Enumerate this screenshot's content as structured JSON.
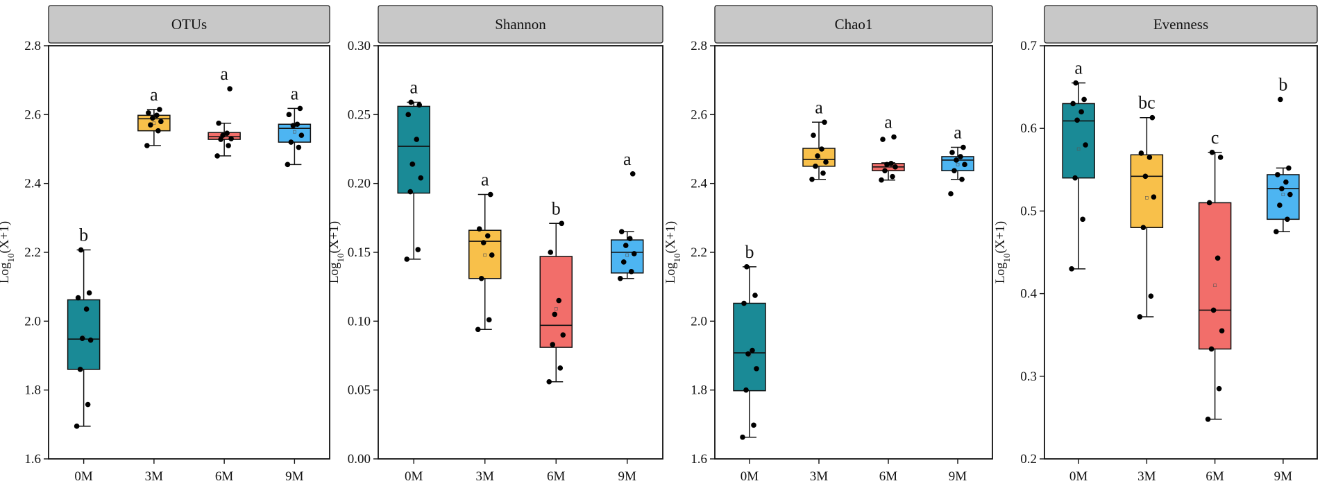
{
  "chart_data": [
    {
      "type": "box",
      "title": "OTUs",
      "ylabel": "Log10(X+1)",
      "ylabel_main": "Log",
      "ylabel_sub": "10",
      "ylabel_tail": "(X+1)",
      "ylim": [
        1.6,
        2.8
      ],
      "yticks": [
        "1.6",
        "1.8",
        "2.0",
        "2.2",
        "2.4",
        "2.6",
        "2.8"
      ],
      "yticks_val": [
        1.6,
        1.8,
        2.0,
        2.2,
        2.4,
        2.6,
        2.8
      ],
      "categories": [
        "0M",
        "3M",
        "6M",
        "9M"
      ],
      "colors": [
        "#1a8a96",
        "#f8c04a",
        "#f26e6a",
        "#4db5f2"
      ],
      "boxes": [
        {
          "min": 1.695,
          "q1": 1.86,
          "median": 1.948,
          "q3": 2.062,
          "max": 2.207,
          "mean": 1.955,
          "letter": "b",
          "points": [
            1.695,
            1.758,
            1.86,
            1.945,
            1.95,
            2.035,
            2.068,
            2.082,
            2.207
          ]
        },
        {
          "min": 2.51,
          "q1": 2.553,
          "median": 2.588,
          "q3": 2.598,
          "max": 2.615,
          "mean": 2.575,
          "letter": "a",
          "points": [
            2.51,
            2.553,
            2.57,
            2.58,
            2.59,
            2.598,
            2.605,
            2.615
          ]
        },
        {
          "min": 2.48,
          "q1": 2.528,
          "median": 2.536,
          "q3": 2.548,
          "max": 2.575,
          "mean": 2.54,
          "letter": "a",
          "points": [
            2.48,
            2.51,
            2.528,
            2.53,
            2.54,
            2.546,
            2.575,
            2.675
          ]
        },
        {
          "min": 2.455,
          "q1": 2.52,
          "median": 2.56,
          "q3": 2.572,
          "max": 2.618,
          "mean": 2.55,
          "letter": "a",
          "points": [
            2.455,
            2.505,
            2.52,
            2.54,
            2.568,
            2.572,
            2.6,
            2.618
          ]
        }
      ]
    },
    {
      "type": "box",
      "title": "Shannon",
      "ylabel": "Log10(X+1)",
      "ylabel_main": "Log",
      "ylabel_sub": "10",
      "ylabel_tail": "(X+1)",
      "ylim": [
        0.0,
        0.3
      ],
      "yticks": [
        "0.00",
        "0.05",
        "0.10",
        "0.15",
        "0.20",
        "0.25",
        "0.30"
      ],
      "yticks_val": [
        0.0,
        0.05,
        0.1,
        0.15,
        0.2,
        0.25,
        0.3
      ],
      "categories": [
        "0M",
        "3M",
        "6M",
        "9M"
      ],
      "colors": [
        "#1a8a96",
        "#f8c04a",
        "#f26e6a",
        "#4db5f2"
      ],
      "boxes": [
        {
          "min": 0.145,
          "q1": 0.193,
          "median": 0.227,
          "q3": 0.256,
          "max": 0.259,
          "mean": 0.214,
          "letter": "a",
          "points": [
            0.145,
            0.152,
            0.194,
            0.204,
            0.214,
            0.232,
            0.25,
            0.257,
            0.259
          ]
        },
        {
          "min": 0.094,
          "q1": 0.131,
          "median": 0.158,
          "q3": 0.166,
          "max": 0.192,
          "mean": 0.148,
          "letter": "a",
          "points": [
            0.094,
            0.101,
            0.131,
            0.148,
            0.157,
            0.162,
            0.167,
            0.192
          ]
        },
        {
          "min": 0.056,
          "q1": 0.081,
          "median": 0.097,
          "q3": 0.147,
          "max": 0.171,
          "mean": 0.109,
          "letter": "b",
          "points": [
            0.056,
            0.066,
            0.083,
            0.09,
            0.105,
            0.115,
            0.15,
            0.171
          ]
        },
        {
          "min": 0.131,
          "q1": 0.135,
          "median": 0.15,
          "q3": 0.159,
          "max": 0.165,
          "mean": 0.148,
          "letter": "a",
          "points": [
            0.131,
            0.136,
            0.143,
            0.149,
            0.155,
            0.16,
            0.165,
            0.207
          ]
        }
      ]
    },
    {
      "type": "box",
      "title": "Chao1",
      "ylabel": "Log10(X+1)",
      "ylabel_main": "Log",
      "ylabel_sub": "10",
      "ylabel_tail": "(X+1)",
      "ylim": [
        1.6,
        2.8
      ],
      "yticks": [
        "1.6",
        "1.8",
        "2.0",
        "2.2",
        "2.4",
        "2.6",
        "2.8"
      ],
      "yticks_val": [
        1.6,
        1.8,
        2.0,
        2.2,
        2.4,
        2.6,
        2.8
      ],
      "categories": [
        "0M",
        "3M",
        "6M",
        "9M"
      ],
      "colors": [
        "#1a8a96",
        "#f8c04a",
        "#f26e6a",
        "#4db5f2"
      ],
      "boxes": [
        {
          "min": 1.663,
          "q1": 1.798,
          "median": 1.908,
          "q3": 2.052,
          "max": 2.158,
          "mean": 1.9,
          "letter": "b",
          "points": [
            1.663,
            1.698,
            1.8,
            1.862,
            1.905,
            1.915,
            2.052,
            2.075,
            2.158
          ]
        },
        {
          "min": 2.412,
          "q1": 2.45,
          "median": 2.47,
          "q3": 2.502,
          "max": 2.578,
          "mean": 2.473,
          "letter": "a",
          "points": [
            2.412,
            2.43,
            2.45,
            2.462,
            2.48,
            2.5,
            2.54,
            2.578
          ]
        },
        {
          "min": 2.41,
          "q1": 2.437,
          "median": 2.448,
          "q3": 2.458,
          "max": 2.46,
          "mean": 2.452,
          "letter": "a",
          "points": [
            2.41,
            2.42,
            2.437,
            2.448,
            2.455,
            2.458,
            2.528,
            2.535
          ]
        },
        {
          "min": 2.412,
          "q1": 2.437,
          "median": 2.468,
          "q3": 2.478,
          "max": 2.505,
          "mean": 2.455,
          "letter": "a",
          "points": [
            2.37,
            2.412,
            2.437,
            2.455,
            2.468,
            2.478,
            2.49,
            2.505
          ]
        }
      ]
    },
    {
      "type": "box",
      "title": "Evenness",
      "ylabel": "Log10(X+1)",
      "ylabel_main": "Log",
      "ylabel_sub": "10",
      "ylabel_tail": "(X+1)",
      "ylim": [
        0.2,
        0.7
      ],
      "yticks": [
        "0.2",
        "0.3",
        "0.4",
        "0.5",
        "0.6",
        "0.7"
      ],
      "yticks_val": [
        0.2,
        0.3,
        0.4,
        0.5,
        0.6,
        0.7
      ],
      "categories": [
        "0M",
        "3M",
        "6M",
        "9M"
      ],
      "colors": [
        "#1a8a96",
        "#f8c04a",
        "#f26e6a",
        "#4db5f2"
      ],
      "boxes": [
        {
          "min": 0.43,
          "q1": 0.54,
          "median": 0.609,
          "q3": 0.63,
          "max": 0.655,
          "mean": 0.575,
          "letter": "a",
          "points": [
            0.43,
            0.49,
            0.54,
            0.58,
            0.61,
            0.62,
            0.63,
            0.635,
            0.655
          ]
        },
        {
          "min": 0.372,
          "q1": 0.48,
          "median": 0.542,
          "q3": 0.568,
          "max": 0.613,
          "mean": 0.516,
          "letter": "bc",
          "points": [
            0.372,
            0.397,
            0.48,
            0.517,
            0.542,
            0.565,
            0.57,
            0.613
          ]
        },
        {
          "min": 0.248,
          "q1": 0.333,
          "median": 0.38,
          "q3": 0.51,
          "max": 0.571,
          "mean": 0.41,
          "letter": "c",
          "points": [
            0.248,
            0.285,
            0.333,
            0.355,
            0.38,
            0.443,
            0.51,
            0.565,
            0.571
          ]
        },
        {
          "min": 0.475,
          "q1": 0.49,
          "median": 0.527,
          "q3": 0.544,
          "max": 0.552,
          "mean": 0.52,
          "letter": "b",
          "points": [
            0.475,
            0.49,
            0.507,
            0.52,
            0.527,
            0.535,
            0.544,
            0.552,
            0.635
          ]
        }
      ]
    }
  ]
}
